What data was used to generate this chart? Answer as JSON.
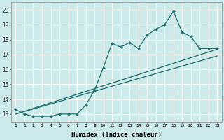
{
  "xlabel": "Humidex (Indice chaleur)",
  "bg_color": "#cceaea",
  "line_color": "#1a6b6b",
  "grid_color": "#ffffff",
  "xlim": [
    -0.5,
    23.5
  ],
  "ylim": [
    12.5,
    20.5
  ],
  "yticks": [
    13,
    14,
    15,
    16,
    17,
    18,
    19,
    20
  ],
  "xticks": [
    0,
    1,
    2,
    3,
    4,
    5,
    6,
    7,
    8,
    9,
    10,
    11,
    12,
    13,
    14,
    15,
    16,
    17,
    18,
    19,
    20,
    21,
    22,
    23
  ],
  "line1_x": [
    0,
    1,
    2,
    3,
    4,
    5,
    6,
    7,
    8,
    9,
    10,
    11,
    12,
    13,
    14,
    15,
    16,
    17,
    18,
    19,
    20,
    21,
    22,
    23
  ],
  "line1_y": [
    13.3,
    13.0,
    12.85,
    12.85,
    12.85,
    13.0,
    13.0,
    13.0,
    13.6,
    14.6,
    16.1,
    17.75,
    17.5,
    17.8,
    17.4,
    18.3,
    18.7,
    19.0,
    19.9,
    18.5,
    18.2,
    17.4,
    17.4,
    17.4
  ],
  "line2_x": [
    0,
    23
  ],
  "line2_y": [
    13.0,
    17.35
  ],
  "line3_x": [
    0,
    23
  ],
  "line3_y": [
    13.0,
    16.9
  ]
}
